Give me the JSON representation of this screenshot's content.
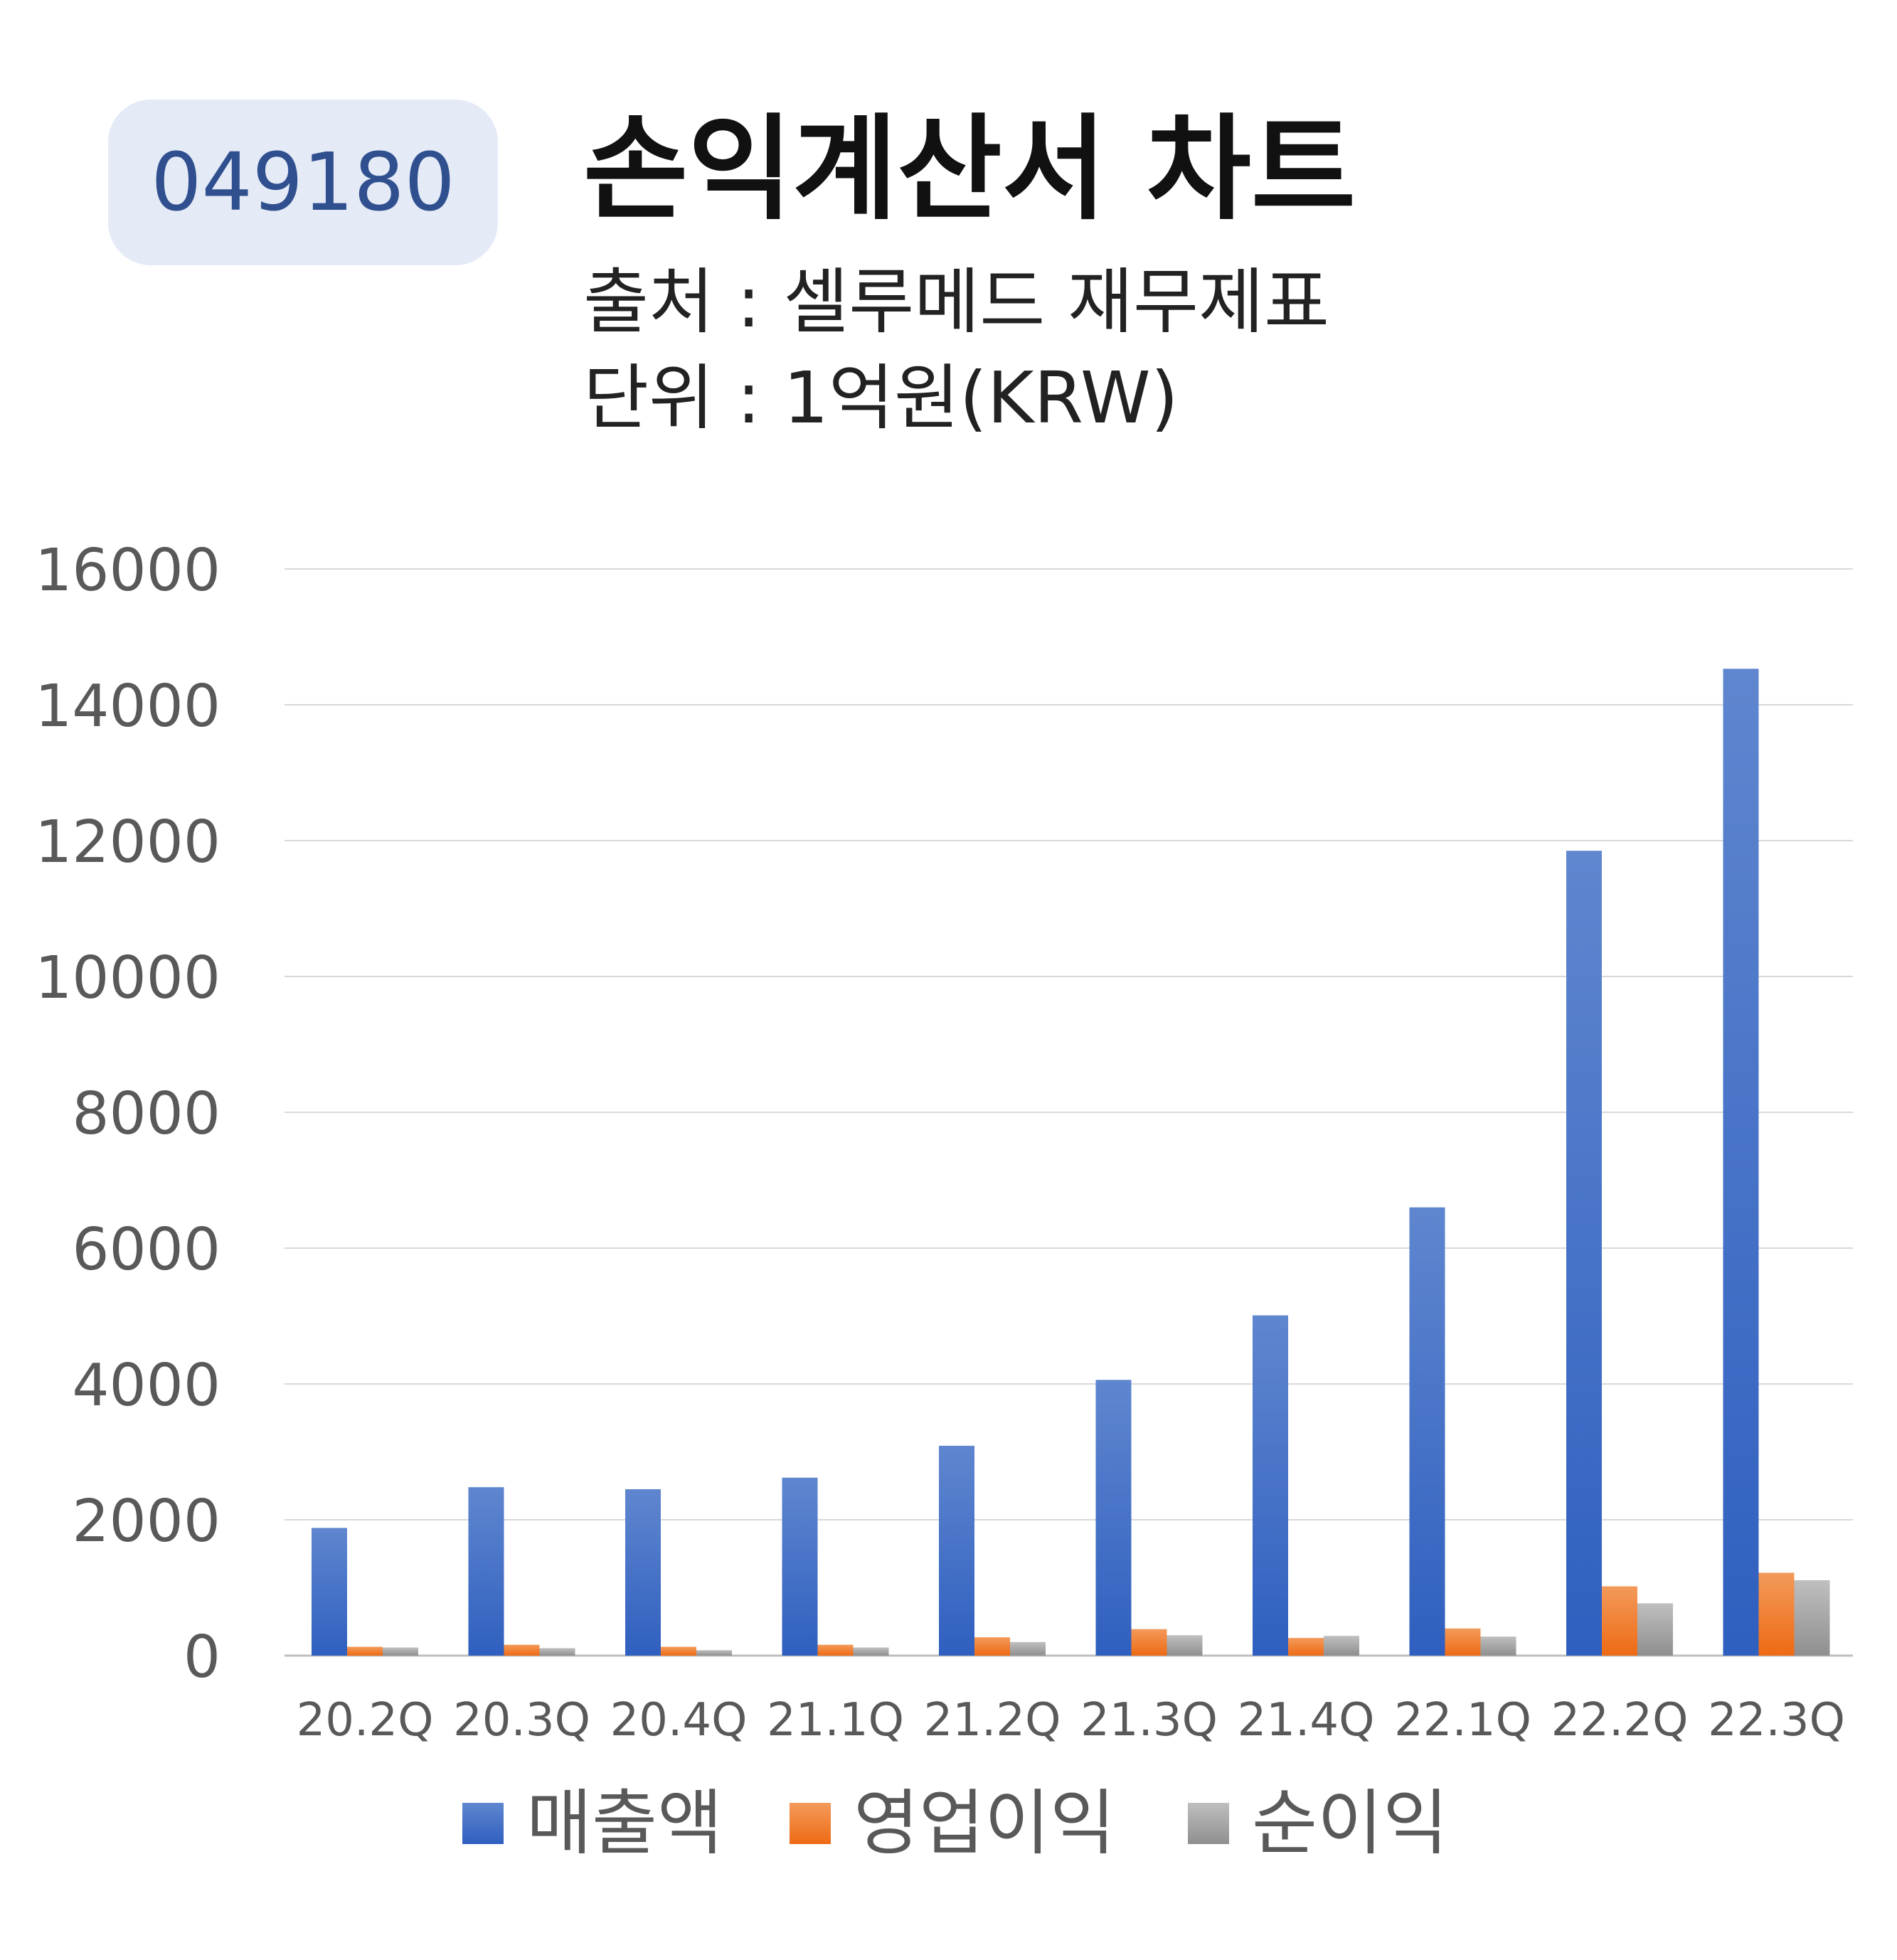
{
  "badge": {
    "code": "049180"
  },
  "header": {
    "title": "손익계산서 차트",
    "source": "출처 : 셀루메드 재무제표",
    "unit": "단위 : 1억원(KRW)"
  },
  "colors": {
    "sales": "#4472c4",
    "operating": "#ed7d31",
    "net": "#a5a5a5",
    "badge_bg": "#e4eaf6",
    "badge_text": "#2f4f8f"
  },
  "chart_data": {
    "type": "bar",
    "categories": [
      "20.2Q",
      "20.3Q",
      "20.4Q",
      "21.1Q",
      "21.2Q",
      "21.3Q",
      "21.4Q",
      "22.1Q",
      "22.2Q",
      "22.3Q"
    ],
    "series": [
      {
        "name": "매출액",
        "values": [
          1880,
          2480,
          2450,
          2620,
          3090,
          4060,
          5010,
          6600,
          11850,
          14530
        ]
      },
      {
        "name": "영업이익",
        "values": [
          130,
          160,
          130,
          160,
          270,
          390,
          260,
          400,
          1020,
          1220
        ]
      },
      {
        "name": "순이익",
        "values": [
          120,
          110,
          80,
          120,
          200,
          300,
          290,
          280,
          770,
          1110
        ]
      }
    ],
    "yticks": [
      "0",
      "2000",
      "4000",
      "6000",
      "8000",
      "10000",
      "12000",
      "14000",
      "16000"
    ],
    "ylim": [
      0,
      16000
    ],
    "grid": true,
    "legend": "bottom"
  }
}
